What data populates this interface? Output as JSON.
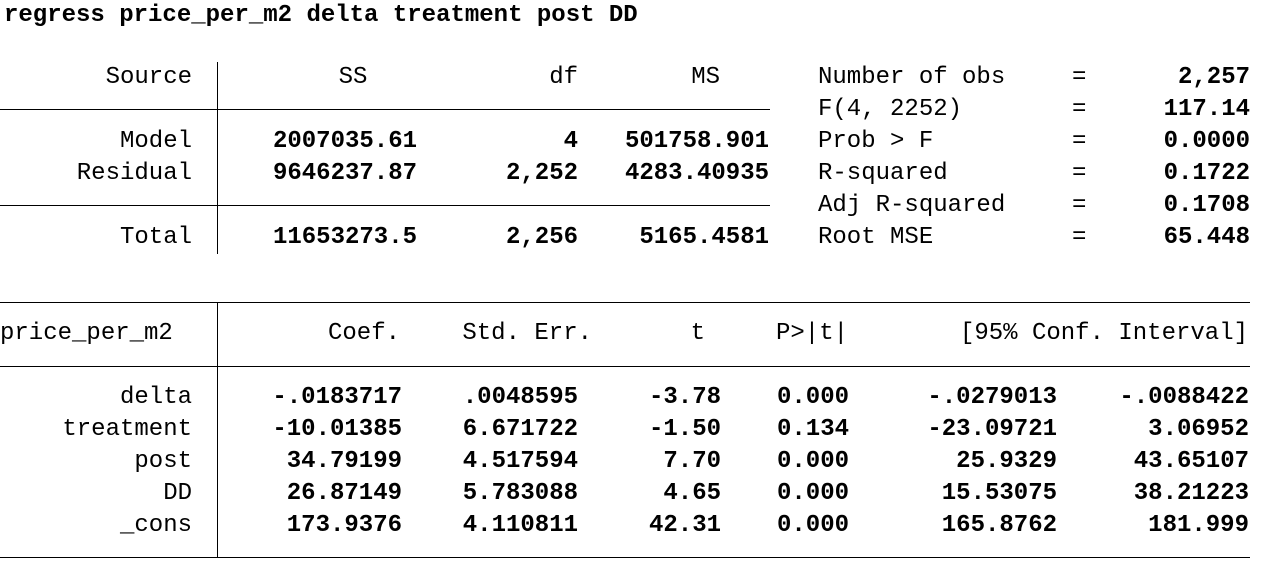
{
  "command": "regress price_per_m2 delta treatment post DD",
  "anova": {
    "headers": {
      "source": "Source",
      "ss": "SS",
      "df": "df",
      "ms": "MS"
    },
    "rows": [
      {
        "source": "Model",
        "ss": "2007035.61",
        "df": "4",
        "ms": "501758.901"
      },
      {
        "source": "Residual",
        "ss": "9646237.87",
        "df": "2,252",
        "ms": "4283.40935"
      }
    ],
    "total": {
      "source": "Total",
      "ss": "11653273.5",
      "df": "2,256",
      "ms": "5165.4581"
    }
  },
  "stats": [
    {
      "label": "Number of obs",
      "eq": "=",
      "value": "2,257"
    },
    {
      "label": "F(4, 2252)",
      "eq": "=",
      "value": "117.14"
    },
    {
      "label": "Prob > F",
      "eq": "=",
      "value": "0.0000"
    },
    {
      "label": "R-squared",
      "eq": "=",
      "value": "0.1722"
    },
    {
      "label": "Adj R-squared",
      "eq": "=",
      "value": "0.1708"
    },
    {
      "label": "Root MSE",
      "eq": "=",
      "value": "65.448"
    }
  ],
  "coef": {
    "headers": {
      "depvar": "price_per_m2",
      "coef": "Coef.",
      "se": "Std. Err.",
      "t": "t",
      "p": "P>|t|",
      "ci": "[95% Conf. Interval]"
    },
    "rows": [
      {
        "var": "delta",
        "coef": "-.0183717",
        "se": ".0048595",
        "t": "-3.78",
        "p": "0.000",
        "lo": "-.0279013",
        "hi": "-.0088422"
      },
      {
        "var": "treatment",
        "coef": "-10.01385",
        "se": "6.671722",
        "t": "-1.50",
        "p": "0.134",
        "lo": "-23.09721",
        "hi": "3.06952"
      },
      {
        "var": "post",
        "coef": "34.79199",
        "se": "4.517594",
        "t": "7.70",
        "p": "0.000",
        "lo": "25.9329",
        "hi": "43.65107"
      },
      {
        "var": "DD",
        "coef": "26.87149",
        "se": "5.783088",
        "t": "4.65",
        "p": "0.000",
        "lo": "15.53075",
        "hi": "38.21223"
      },
      {
        "var": "_cons",
        "coef": "173.9376",
        "se": "4.110811",
        "t": "42.31",
        "p": "0.000",
        "lo": "165.8762",
        "hi": "181.999"
      }
    ]
  }
}
